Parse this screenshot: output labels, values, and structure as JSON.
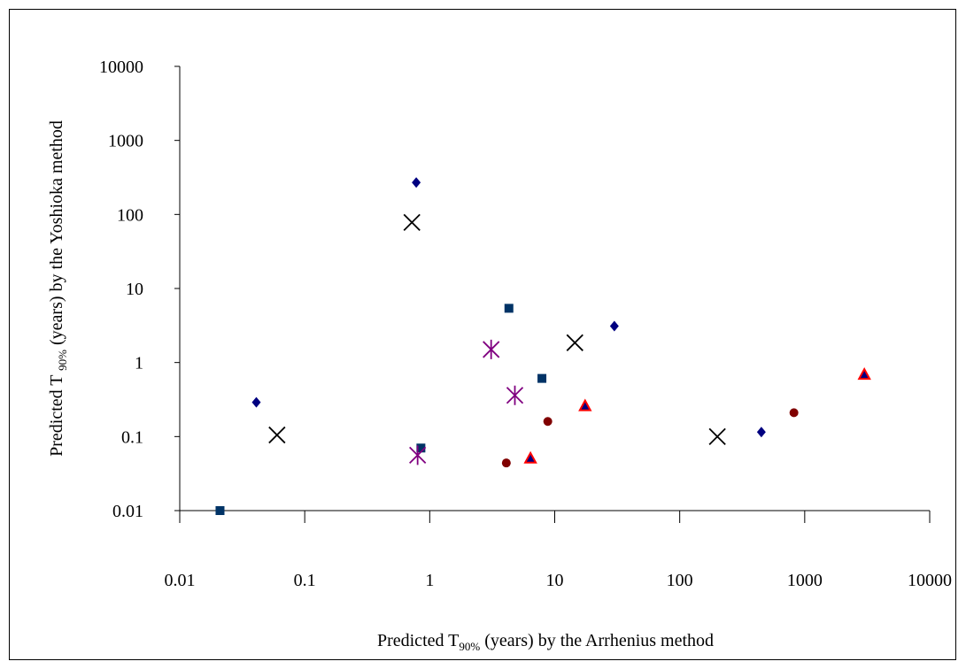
{
  "chart_data": {
    "type": "scatter",
    "title": "",
    "xlabel": "Predicted T90% (years) by the Arrhenius method",
    "xlabel_parts": {
      "pre": "Predicted T",
      "sub": "90%",
      "post": " (years)  by the Arrhenius method"
    },
    "ylabel": "Predicted T 90% (years) by the Yoshioka method",
    "ylabel_parts": {
      "pre": "Predicted T ",
      "sub": "90%",
      "post": " (years)   by the Yoshioka method"
    },
    "x_scale": "log",
    "y_scale": "log",
    "xlim": [
      0.01,
      10000
    ],
    "ylim": [
      0.01,
      10000
    ],
    "x_ticks": [
      {
        "value": 0.01,
        "label": "0.01"
      },
      {
        "value": 0.1,
        "label": "0.1"
      },
      {
        "value": 1,
        "label": "1"
      },
      {
        "value": 10,
        "label": "10"
      },
      {
        "value": 100,
        "label": "100"
      },
      {
        "value": 1000,
        "label": "1000"
      },
      {
        "value": 10000,
        "label": "10000"
      }
    ],
    "y_ticks": [
      {
        "value": 0.01,
        "label": "0.01"
      },
      {
        "value": 0.1,
        "label": "0.1"
      },
      {
        "value": 1,
        "label": "1"
      },
      {
        "value": 10,
        "label": "10"
      },
      {
        "value": 100,
        "label": "100"
      },
      {
        "value": 1000,
        "label": "1000"
      },
      {
        "value": 10000,
        "label": "10000"
      }
    ],
    "grid": false,
    "legend": "none",
    "series": [
      {
        "marker": "diamond",
        "color": "#000080",
        "points": [
          {
            "x": 0.041,
            "y": 0.29
          },
          {
            "x": 0.78,
            "y": 270
          },
          {
            "x": 30,
            "y": 3.1
          },
          {
            "x": 450,
            "y": 0.115
          }
        ]
      },
      {
        "marker": "square",
        "color": "#003366",
        "points": [
          {
            "x": 0.021,
            "y": 0.01
          },
          {
            "x": 0.85,
            "y": 0.07
          },
          {
            "x": 4.3,
            "y": 5.4
          },
          {
            "x": 7.9,
            "y": 0.61
          }
        ]
      },
      {
        "marker": "triangle",
        "color": "#000080",
        "edge_color": "#ff0000",
        "points": [
          {
            "x": 6.4,
            "y": 0.051
          },
          {
            "x": 17.5,
            "y": 0.26
          },
          {
            "x": 3000,
            "y": 0.69
          }
        ]
      },
      {
        "marker": "x",
        "color": "#000000",
        "points": [
          {
            "x": 0.06,
            "y": 0.105
          },
          {
            "x": 0.72,
            "y": 78
          },
          {
            "x": 14.5,
            "y": 1.85
          },
          {
            "x": 200,
            "y": 0.1
          }
        ]
      },
      {
        "marker": "star",
        "color": "#800080",
        "points": [
          {
            "x": 0.8,
            "y": 0.056
          },
          {
            "x": 3.1,
            "y": 1.5
          },
          {
            "x": 4.8,
            "y": 0.36
          }
        ]
      },
      {
        "marker": "circle",
        "color": "#800000",
        "points": [
          {
            "x": 4.1,
            "y": 0.044
          },
          {
            "x": 8.8,
            "y": 0.16
          },
          {
            "x": 820,
            "y": 0.21
          }
        ]
      }
    ]
  }
}
